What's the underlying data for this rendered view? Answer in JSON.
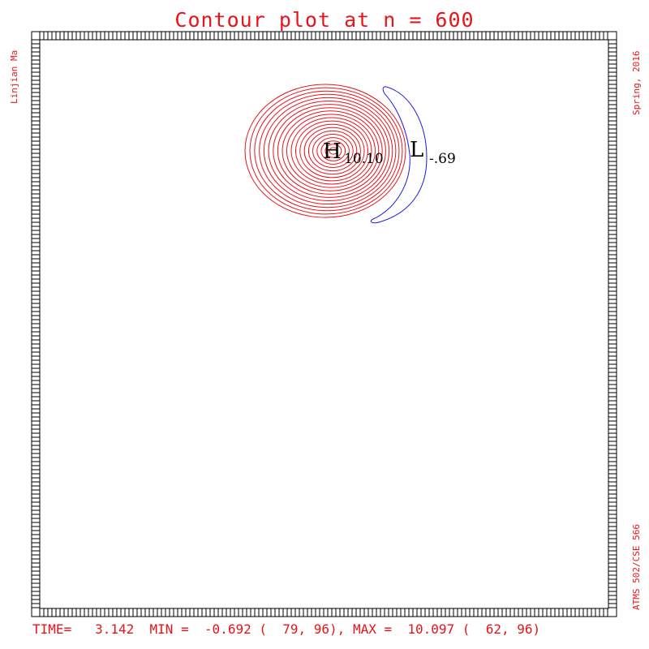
{
  "chart_data": {
    "type": "contour",
    "title": "Contour plot at n = 600",
    "author": "Linjian Ma",
    "date": "Spring, 2016",
    "course": "ATMS 502/CSE 566",
    "footer": "TIME=   3.142  MIN =  -0.692 (  79, 96), MAX =  10.097 (  62, 96)",
    "high_label": {
      "letter": "H",
      "value": "10.10"
    },
    "low_label": {
      "letter": "L",
      "value": "-.69"
    },
    "positive_contour_color": "#e8141a",
    "negative_contour_color": "#1a1ae8",
    "positive_contour_count": 20
  }
}
